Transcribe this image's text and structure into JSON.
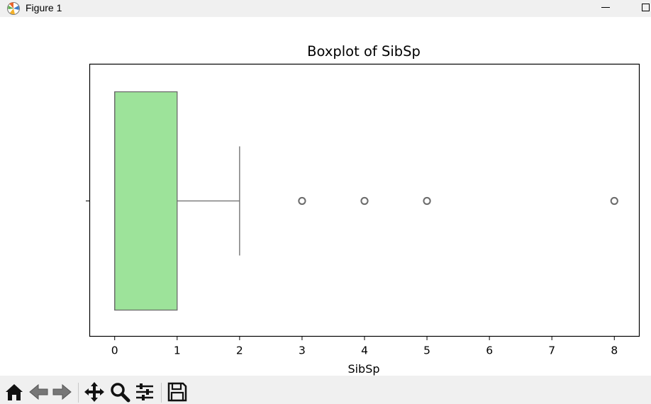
{
  "window": {
    "title": "Figure 1"
  },
  "toolbar": {
    "tools": [
      {
        "name": "home-icon",
        "tooltip": "Reset original view"
      },
      {
        "name": "back-arrow-icon",
        "tooltip": "Back"
      },
      {
        "name": "forward-arrow-icon",
        "tooltip": "Forward"
      },
      {
        "name": "pan-icon",
        "tooltip": "Pan"
      },
      {
        "name": "zoom-icon",
        "tooltip": "Zoom"
      },
      {
        "name": "configure-subplots-icon",
        "tooltip": "Configure subplots"
      },
      {
        "name": "save-icon",
        "tooltip": "Save"
      }
    ]
  },
  "chart_data": {
    "type": "box",
    "title": "Boxplot of SibSp",
    "xlabel": "SibSp",
    "ylabel": "",
    "orientation": "horizontal",
    "xlim": [
      -0.4,
      8.4
    ],
    "xticks": [
      0,
      1,
      2,
      3,
      4,
      5,
      6,
      7,
      8
    ],
    "grid": false,
    "box": {
      "min_whisker": 0,
      "q1": 0,
      "median": 0,
      "q3": 1,
      "max_whisker": 2,
      "outliers": [
        3,
        4,
        5,
        8
      ],
      "fill_color": "#9de39a",
      "edge_color": "#6b6b6b"
    }
  }
}
